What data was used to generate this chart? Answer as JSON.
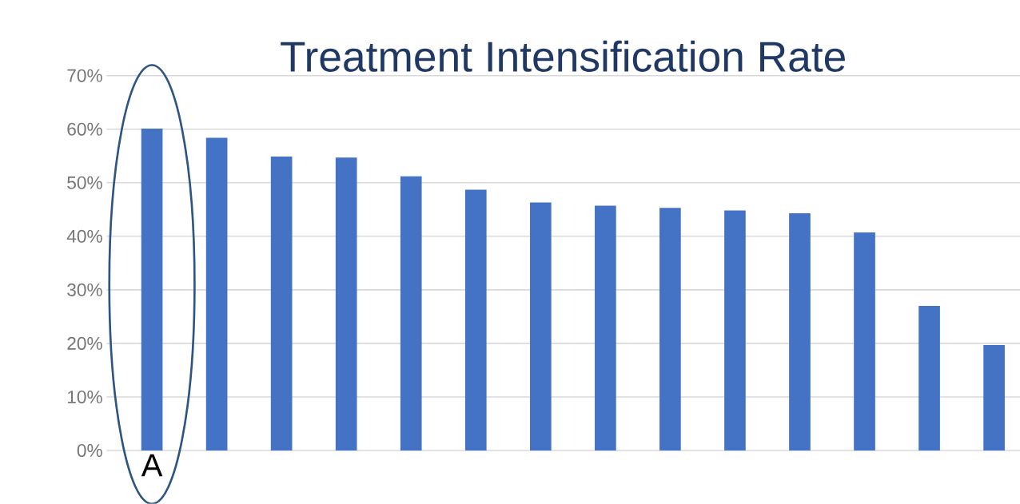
{
  "chart_data": {
    "type": "bar",
    "title": "Treatment Intensification Rate",
    "categories": [
      "A",
      null,
      null,
      null,
      null,
      null,
      null,
      null,
      null,
      null,
      null,
      null,
      null,
      null
    ],
    "values": [
      60.1,
      58.4,
      54.9,
      54.7,
      51.2,
      48.7,
      46.3,
      45.7,
      45.3,
      44.8,
      44.3,
      40.7,
      27.0,
      19.7
    ],
    "color": "#4472c4",
    "ylim": [
      0,
      70
    ],
    "yticks": [
      {
        "value": 0,
        "label": "0%"
      },
      {
        "value": 10,
        "label": "10%"
      },
      {
        "value": 20,
        "label": "20%"
      },
      {
        "value": 30,
        "label": "30%"
      },
      {
        "value": 40,
        "label": "40%"
      },
      {
        "value": 50,
        "label": "50%"
      },
      {
        "value": 60,
        "label": "60%"
      },
      {
        "value": 70,
        "label": "70%"
      }
    ],
    "grid": "y"
  }
}
